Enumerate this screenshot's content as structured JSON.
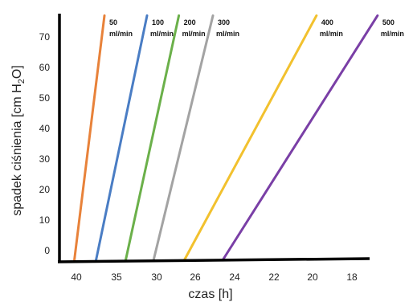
{
  "chart_data": {
    "type": "line",
    "xlabel": "czas [h]",
    "ylabel_prefix": "spadek ciśnienia [cm H",
    "ylabel_sub": "2",
    "ylabel_suffix": "O]",
    "x_ticks": [
      "40",
      "35",
      "30",
      "26",
      "24",
      "22",
      "20",
      "18"
    ],
    "y_ticks": [
      "0",
      "10",
      "20",
      "30",
      "40",
      "50",
      "60",
      "70"
    ],
    "ylim": [
      -4,
      77
    ],
    "grid": false,
    "legend": "labels at line tops",
    "series": [
      {
        "name": "50 ml/min",
        "label_line1": "50",
        "label_line2": "ml/min",
        "color": "#E8823A",
        "x_start": 40.1,
        "x_end": 36.5,
        "y_start": 0,
        "y_end": 77
      },
      {
        "name": "100 ml/min",
        "label_line1": "100",
        "label_line2": "ml/min",
        "color": "#4A7DC4",
        "x_start": 37.3,
        "x_end": 31.2,
        "y_start": 0,
        "y_end": 77
      },
      {
        "name": "200 ml/min",
        "label_line1": "200",
        "label_line2": "ml/min",
        "color": "#6BB04A",
        "x_start": 33.6,
        "x_end": 27.7,
        "y_start": 0,
        "y_end": 77
      },
      {
        "name": "300 ml/min",
        "label_line1": "300",
        "label_line2": "ml/min",
        "color": "#A3A3A3",
        "x_start": 30.1,
        "x_end": 25.1,
        "y_start": 0,
        "y_end": 77
      },
      {
        "name": "400 ml/min",
        "label_line1": "400",
        "label_line2": "ml/min",
        "color": "#F2C12E",
        "x_start": 26.6,
        "x_end": 19.8,
        "y_start": 0,
        "y_end": 77
      },
      {
        "name": "500 ml/min",
        "label_line1": "500",
        "label_line2": "ml/min",
        "color": "#7A3FA6",
        "x_start": 24.3,
        "x_end": 16.7,
        "y_start": 0,
        "y_end": 77
      }
    ]
  }
}
